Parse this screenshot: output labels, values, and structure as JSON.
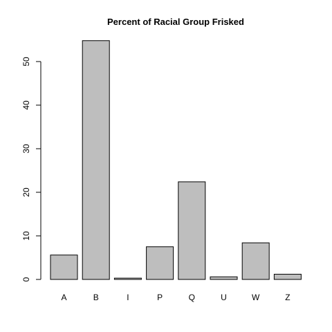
{
  "chart_data": {
    "type": "bar",
    "title": "Percent of Racial Group Frisked",
    "xlabel": "",
    "ylabel": "",
    "categories": [
      "A",
      "B",
      "I",
      "P",
      "Q",
      "U",
      "W",
      "Z"
    ],
    "values": [
      5.6,
      54.8,
      0.3,
      7.5,
      22.4,
      0.6,
      8.4,
      1.2
    ],
    "ylim": [
      0,
      55
    ],
    "yticks": [
      0,
      10,
      20,
      30,
      40,
      50
    ],
    "grid": false,
    "legend": "none",
    "bar_color": "#bebebe",
    "bar_border_color": "#000000"
  }
}
